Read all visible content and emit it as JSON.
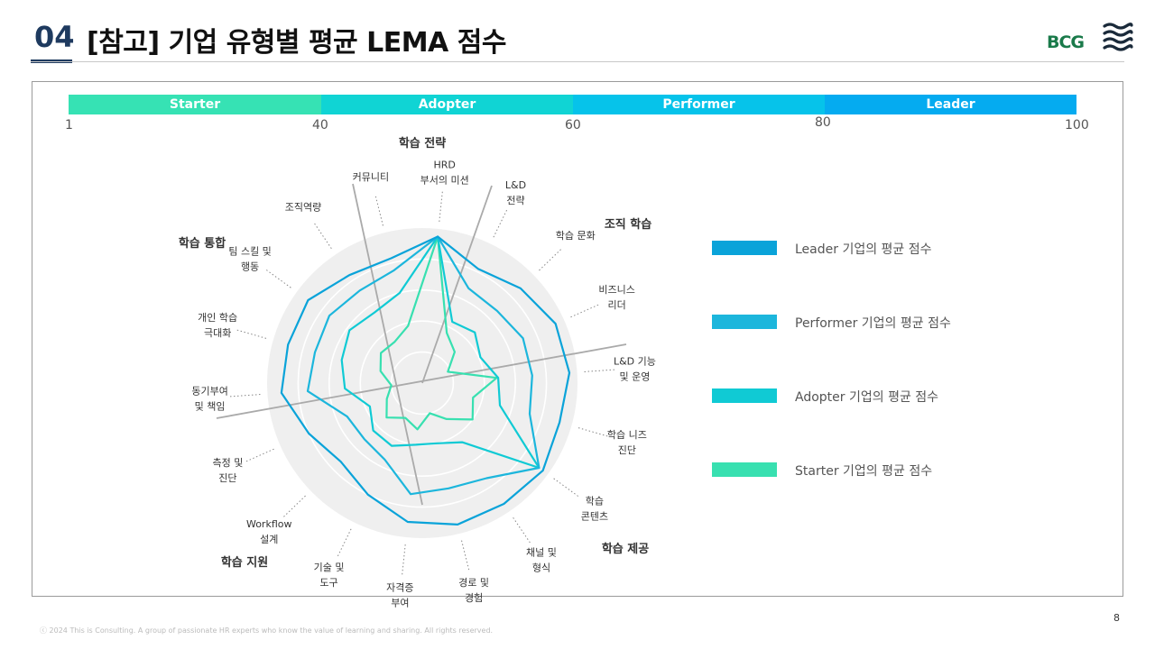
{
  "header": {
    "number": "04",
    "title": "[참고] 기업 유형별 평균 LEMA 점수",
    "logo_text": "BCG",
    "logo_mark": "this-is-consulting-wave-mark"
  },
  "colors": {
    "leader": "#0aa3d9",
    "performer": "#1cb6dc",
    "adopter": "#10cad4",
    "starter": "#38e0b0",
    "scale_starter": "#36e2b4",
    "scale_adopter": "#10d4d4",
    "scale_performer": "#06c3ea",
    "scale_leader": "#05abf0"
  },
  "scale": {
    "segments": [
      {
        "label": "Starter",
        "from": 1,
        "to": 40
      },
      {
        "label": "Adopter",
        "from": 40,
        "to": 60
      },
      {
        "label": "Performer",
        "from": 60,
        "to": 80
      },
      {
        "label": "Leader",
        "from": 80,
        "to": 100
      }
    ],
    "ticks": [
      "1",
      "40",
      "60",
      "80",
      "100"
    ]
  },
  "chart_data": {
    "type": "radar",
    "title": "",
    "max": 100,
    "categories": [
      "HRD 부서의 미션",
      "L&D 전략",
      "학습 문화",
      "비즈니스 리더",
      "L&D 기능 및 운영",
      "학습 니즈 진단",
      "학습 콘텐츠",
      "채널 및 형식",
      "경로 및 경험",
      "자격증 부여",
      "기술 및 도구",
      "Workflow 설계",
      "측정 및 진단",
      "동기부여 및 책임",
      "개인 학습 극대화",
      "팀 스킬 및 행동",
      "조직역량",
      "커뮤니티"
    ],
    "category_lines": [
      [
        "HRD",
        "부서의 미션"
      ],
      [
        "L&D",
        "전략"
      ],
      [
        "학습 문화"
      ],
      [
        "비즈니스",
        "리더"
      ],
      [
        "L&D 기능",
        "및 운영"
      ],
      [
        "학습 니즈",
        "진단"
      ],
      [
        "학습",
        "콘텐츠"
      ],
      [
        "채널 및",
        "형식"
      ],
      [
        "경로 및",
        "경험"
      ],
      [
        "자격증",
        "부여"
      ],
      [
        "기술 및",
        "도구"
      ],
      [
        "Workflow",
        "설계"
      ],
      [
        "측정 및",
        "진단"
      ],
      [
        "동기부여",
        "및 책임"
      ],
      [
        "개인 학습",
        "극대화"
      ],
      [
        "팀 스킬 및",
        "행동"
      ],
      [
        "조직역량"
      ],
      [
        "커뮤니티"
      ]
    ],
    "series": [
      {
        "name": "Leader 기업의 평균 점수",
        "values": [
          95,
          82,
          88,
          94,
          95,
          92,
          96,
          94,
          94,
          90,
          80,
          73,
          80,
          91,
          90,
          91,
          84,
          83
        ]
      },
      {
        "name": "Performer 기업의 평균 점수",
        "values": [
          95,
          68,
          67,
          71,
          71,
          72,
          93,
          74,
          70,
          72,
          55,
          52,
          53,
          74,
          72,
          74,
          72,
          75
        ]
      },
      {
        "name": "Adopter 기업의 평균 점수",
        "values": [
          95,
          44,
          47,
          41,
          49,
          52,
          93,
          46,
          40,
          40,
          45,
          44,
          37,
          50,
          54,
          58,
          55,
          60
        ]
      },
      {
        "name": "Starter 기업의 평균 점수",
        "values": [
          95,
          36,
          29,
          18,
          48,
          34,
          40,
          28,
          20,
          30,
          25,
          32,
          25,
          20,
          28,
          33,
          32,
          38
        ]
      }
    ],
    "groups": [
      {
        "name": "학습 전략"
      },
      {
        "name": "조직 학습"
      },
      {
        "name": "학습 제공"
      },
      {
        "name": "학습 지원"
      },
      {
        "name": "학습 통합"
      }
    ]
  },
  "footer": {
    "copyright": "ⓒ 2024 This is Consulting. A group of passionate HR experts who know the value of learning and sharing. All rights reserved.",
    "page": "8"
  }
}
